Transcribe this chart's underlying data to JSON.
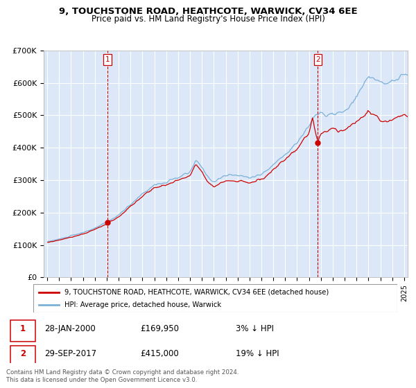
{
  "title": "9, TOUCHSTONE ROAD, HEATHCOTE, WARWICK, CV34 6EE",
  "subtitle": "Price paid vs. HM Land Registry's House Price Index (HPI)",
  "legend_label_red": "9, TOUCHSTONE ROAD, HEATHCOTE, WARWICK, CV34 6EE (detached house)",
  "legend_label_blue": "HPI: Average price, detached house, Warwick",
  "annotation1_date": "28-JAN-2000",
  "annotation1_price": "£169,950",
  "annotation1_hpi": "3% ↓ HPI",
  "annotation2_date": "29-SEP-2017",
  "annotation2_price": "£415,000",
  "annotation2_hpi": "19% ↓ HPI",
  "footer": "Contains HM Land Registry data © Crown copyright and database right 2024.\nThis data is licensed under the Open Government Licence v3.0.",
  "ylim": [
    0,
    700000
  ],
  "yticks": [
    0,
    100000,
    200000,
    300000,
    400000,
    500000,
    600000,
    700000
  ],
  "ytick_labels": [
    "£0",
    "£100K",
    "£200K",
    "£300K",
    "£400K",
    "£500K",
    "£600K",
    "£700K"
  ],
  "bg_color": "#dce8f8",
  "grid_color": "#ffffff",
  "red_color": "#cc0000",
  "blue_color": "#7ab0d8",
  "sale1_x": 2000.08,
  "sale1_y": 169950,
  "sale2_x": 2017.75,
  "sale2_y": 415000,
  "xlim_left": 1994.7,
  "xlim_right": 2025.3
}
